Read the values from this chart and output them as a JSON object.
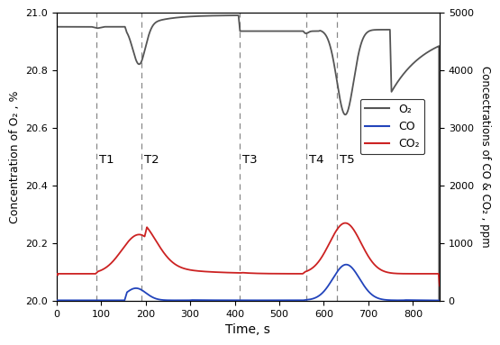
{
  "title": "",
  "xlabel": "Time, s",
  "ylabel_left": "Concentration of O₂ , %",
  "ylabel_right": "Concectrations of CO & CO₂ , ppm",
  "xlim": [
    0,
    860
  ],
  "ylim_left": [
    20.0,
    21.0
  ],
  "ylim_right": [
    0,
    5000
  ],
  "T_lines": [
    {
      "x": 90,
      "label": "T1"
    },
    {
      "x": 190,
      "label": "T2"
    },
    {
      "x": 410,
      "label": "T3"
    },
    {
      "x": 560,
      "label": "T4"
    },
    {
      "x": 630,
      "label": "T5"
    }
  ],
  "legend_labels": [
    "O₂",
    "CO",
    "CO₂"
  ],
  "legend_colors": [
    "#555555",
    "#2244bb",
    "#cc2222"
  ],
  "background_color": "#ffffff",
  "o2_baseline": 20.95,
  "co2_baseline_ppm": 470,
  "co_baseline_ppm": 10
}
